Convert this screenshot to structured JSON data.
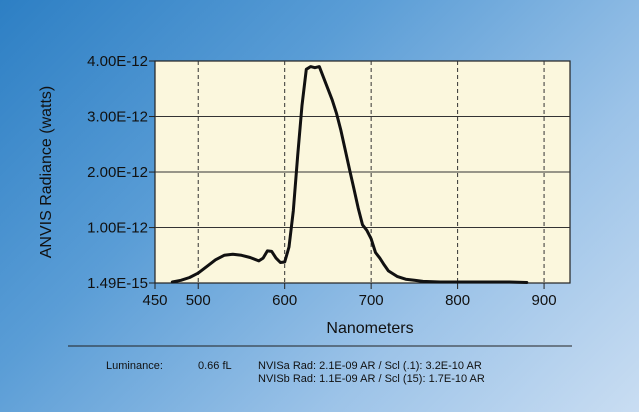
{
  "chart_data": {
    "type": "line",
    "xlabel": "Nanometers",
    "ylabel": "ANVIS Radiance (watts)",
    "xlim": [
      450,
      930
    ],
    "ylim": [
      0.00149,
      4.0
    ],
    "x_ticks": [
      "450",
      "500",
      "600",
      "700",
      "800",
      "900"
    ],
    "y_ticks": [
      "1.49E-15",
      "1.00E-12",
      "2.00E-12",
      "3.00E-12",
      "4.00E-12"
    ],
    "y_unit_note": "y values in units of 1E-12 watts",
    "grid": {
      "x_dashed": true,
      "y_solid": true
    },
    "series": [
      {
        "x": [
          470,
          480,
          490,
          500,
          510,
          520,
          530,
          540,
          550,
          560,
          570,
          575,
          580,
          585,
          590,
          595,
          600,
          605,
          610,
          615,
          620,
          625,
          630,
          635,
          640,
          645,
          650,
          655,
          660,
          665,
          670,
          675,
          680,
          685,
          690,
          695,
          700,
          705,
          710,
          715,
          720,
          730,
          740,
          750,
          760,
          780,
          800,
          820,
          840,
          860,
          880
        ],
        "y": [
          0.02,
          0.05,
          0.1,
          0.18,
          0.3,
          0.42,
          0.5,
          0.52,
          0.5,
          0.46,
          0.4,
          0.45,
          0.58,
          0.57,
          0.45,
          0.37,
          0.38,
          0.65,
          1.3,
          2.3,
          3.2,
          3.85,
          3.9,
          3.88,
          3.9,
          3.7,
          3.5,
          3.3,
          3.05,
          2.75,
          2.4,
          2.05,
          1.7,
          1.35,
          1.05,
          0.95,
          0.8,
          0.55,
          0.45,
          0.33,
          0.22,
          0.12,
          0.07,
          0.05,
          0.03,
          0.02,
          0.02,
          0.02,
          0.02,
          0.02,
          0.01
        ]
      }
    ]
  },
  "footer": {
    "luminance_label": "Luminance:",
    "luminance_value": "0.66 fL",
    "nvisa": "NVISa  Rad: 2.1E-09 AR / Scl (.1):  3.2E-10 AR",
    "nvisb": "NVISb  Rad: 1.1E-09 AR / Scl (15):  1.7E-10 AR"
  }
}
